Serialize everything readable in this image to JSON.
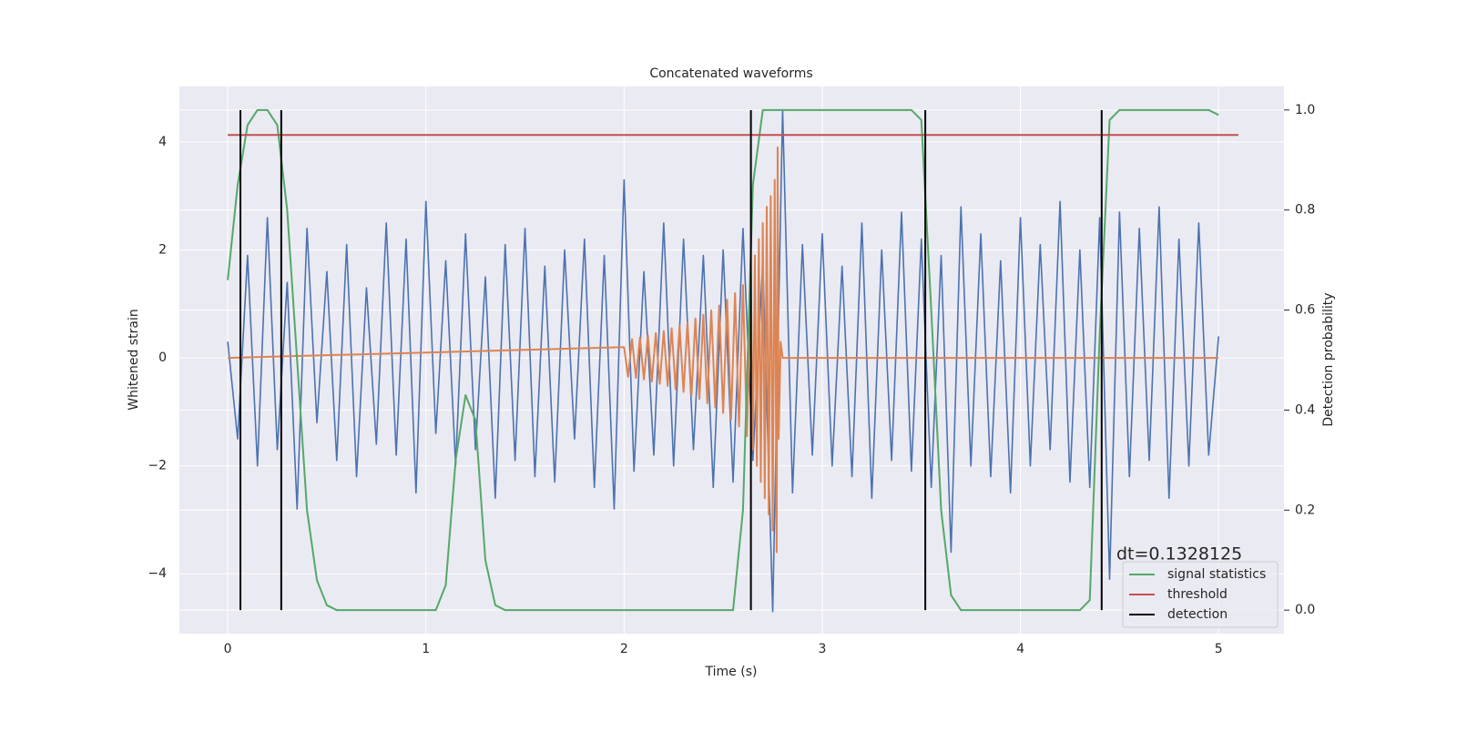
{
  "chart_data": {
    "type": "line",
    "title": "Concatenated waveforms",
    "xlabel": "Time (s)",
    "ylabel": "Whitened strain",
    "y2label": "Detection probability",
    "annotation": "dt=0.1328125",
    "x": [
      0,
      0.05,
      0.1,
      0.15,
      0.2,
      0.25,
      0.3,
      0.35,
      0.4,
      0.45,
      0.5,
      0.55,
      0.6,
      0.65,
      0.7,
      0.75,
      0.8,
      0.85,
      0.9,
      0.95,
      1,
      1.05,
      1.1,
      1.15,
      1.2,
      1.25,
      1.3,
      1.35,
      1.4,
      1.45,
      1.5,
      1.55,
      1.6,
      1.65,
      1.7,
      1.75,
      1.8,
      1.85,
      1.9,
      1.95,
      2,
      2.05,
      2.1,
      2.15,
      2.2,
      2.25,
      2.3,
      2.35,
      2.4,
      2.45,
      2.5,
      2.55,
      2.6,
      2.65,
      2.7,
      2.75,
      2.8,
      2.85,
      2.9,
      2.95,
      3,
      3.05,
      3.1,
      3.15,
      3.2,
      3.25,
      3.3,
      3.35,
      3.4,
      3.45,
      3.5,
      3.55,
      3.6,
      3.65,
      3.7,
      3.75,
      3.8,
      3.85,
      3.9,
      3.95,
      4,
      4.05,
      4.1,
      4.15,
      4.2,
      4.25,
      4.3,
      4.35,
      4.4,
      4.45,
      4.5,
      4.55,
      4.6,
      4.65,
      4.7,
      4.75,
      4.8,
      4.85,
      4.9,
      4.95,
      5
    ],
    "series": [
      {
        "color": "#4c72b0",
        "values": [
          0.3,
          -1.5,
          1.9,
          -2.0,
          2.6,
          -1.7,
          1.4,
          -2.8,
          2.4,
          -1.2,
          1.6,
          -1.9,
          2.1,
          -2.2,
          1.3,
          -1.6,
          2.5,
          -1.8,
          2.2,
          -2.5,
          2.9,
          -1.4,
          1.8,
          -2.0,
          2.3,
          -1.7,
          1.5,
          -2.6,
          2.1,
          -1.9,
          2.4,
          -2.2,
          1.7,
          -2.3,
          2.0,
          -1.5,
          2.2,
          -2.4,
          1.9,
          -2.8,
          3.3,
          -2.1,
          1.6,
          -1.8,
          2.5,
          -2.0,
          2.2,
          -1.7,
          1.9,
          -2.4,
          2.0,
          -2.3,
          2.4,
          -1.9,
          1.8,
          -4.7,
          4.6,
          -2.5,
          2.1,
          -1.8,
          2.3,
          -2.0,
          1.7,
          -2.2,
          2.5,
          -2.6,
          2.0,
          -1.9,
          2.7,
          -2.1,
          2.2,
          -2.4,
          1.9,
          -3.6,
          2.8,
          -2.0,
          2.3,
          -2.2,
          1.8,
          -2.5,
          2.6,
          -2.0,
          2.1,
          -1.7,
          2.9,
          -2.3,
          2.0,
          -2.4,
          2.6,
          -4.1,
          2.7,
          -2.2,
          2.4,
          -1.9,
          2.8,
          -2.6,
          2.2,
          -2.0,
          2.5,
          -1.8,
          0.4
        ]
      },
      {
        "color": "#dd8452",
        "x": [
          0,
          2.0,
          2.02,
          2.04,
          2.06,
          2.08,
          2.1,
          2.12,
          2.14,
          2.16,
          2.18,
          2.2,
          2.22,
          2.24,
          2.26,
          2.28,
          2.3,
          2.32,
          2.34,
          2.36,
          2.38,
          2.4,
          2.42,
          2.44,
          2.46,
          2.48,
          2.5,
          2.52,
          2.54,
          2.56,
          2.58,
          2.6,
          2.62,
          2.64,
          2.65,
          2.66,
          2.67,
          2.68,
          2.69,
          2.7,
          2.71,
          2.72,
          2.73,
          2.74,
          2.75,
          2.76,
          2.77,
          2.775,
          2.78,
          2.79,
          2.8,
          5.0
        ],
        "values": [
          0,
          0.2,
          -0.35,
          0.35,
          -0.37,
          0.38,
          -0.4,
          0.42,
          -0.44,
          0.46,
          -0.48,
          0.5,
          -0.52,
          0.55,
          -0.58,
          0.6,
          -0.63,
          0.66,
          -0.7,
          0.73,
          -0.76,
          0.8,
          -0.84,
          0.88,
          -0.92,
          0.97,
          -1.02,
          1.08,
          -1.14,
          1.2,
          -1.27,
          1.35,
          -1.45,
          1.55,
          -1.7,
          1.9,
          -2.0,
          2.2,
          -2.3,
          2.5,
          -2.6,
          2.8,
          -2.9,
          3.0,
          -3.2,
          3.3,
          -3.6,
          3.9,
          -1.5,
          0.3,
          0,
          0
        ]
      },
      {
        "name": "signal statistics",
        "color": "#55a868",
        "axis": "y2",
        "values": [
          0.66,
          0.85,
          0.97,
          1.0,
          1.0,
          0.97,
          0.8,
          0.5,
          0.2,
          0.06,
          0.01,
          0,
          0,
          0,
          0,
          0,
          0,
          0,
          0,
          0,
          0,
          0,
          0.05,
          0.3,
          0.43,
          0.38,
          0.1,
          0.01,
          0,
          0,
          0,
          0,
          0,
          0,
          0,
          0,
          0,
          0,
          0,
          0,
          0,
          0,
          0,
          0,
          0,
          0,
          0,
          0,
          0,
          0,
          0,
          0,
          0.2,
          0.85,
          1.0,
          1.0,
          1.0,
          1.0,
          1.0,
          1.0,
          1.0,
          1.0,
          1.0,
          1.0,
          1.0,
          1.0,
          1.0,
          1.0,
          1.0,
          1.0,
          0.98,
          0.6,
          0.2,
          0.03,
          0,
          0,
          0,
          0,
          0,
          0,
          0,
          0,
          0,
          0,
          0,
          0,
          0,
          0.02,
          0.55,
          0.98,
          1.0,
          1.0,
          1.0,
          1.0,
          1.0,
          1.0,
          1.0,
          1.0,
          1.0,
          1.0,
          0.99
        ]
      },
      {
        "name": "threshold",
        "color": "#c44e52",
        "axis": "y2",
        "x": [
          0,
          5.1
        ],
        "values": [
          0.95,
          0.95
        ]
      },
      {
        "name": "detection",
        "color": "#000000",
        "axis": "y2",
        "kind": "vline",
        "x": [
          0.064,
          0.27,
          2.64,
          3.52,
          4.41
        ]
      }
    ],
    "xlim": [
      -0.244,
      5.33
    ],
    "xticks": [
      0,
      1,
      2,
      3,
      4,
      5
    ],
    "ylim": [
      -5.11,
      5.03
    ],
    "yticks": [
      {
        "value": -4,
        "label": "−4"
      },
      {
        "value": -2,
        "label": "−2"
      },
      0,
      2,
      4
    ],
    "y2lim": [
      -0.047,
      1.047
    ],
    "y2ticks": [
      {
        "value": 0,
        "label": "0.0"
      },
      0.2,
      0.4,
      0.6,
      0.8,
      {
        "value": 1,
        "label": "1.0"
      }
    ],
    "grid": true,
    "legend": "lower right"
  }
}
